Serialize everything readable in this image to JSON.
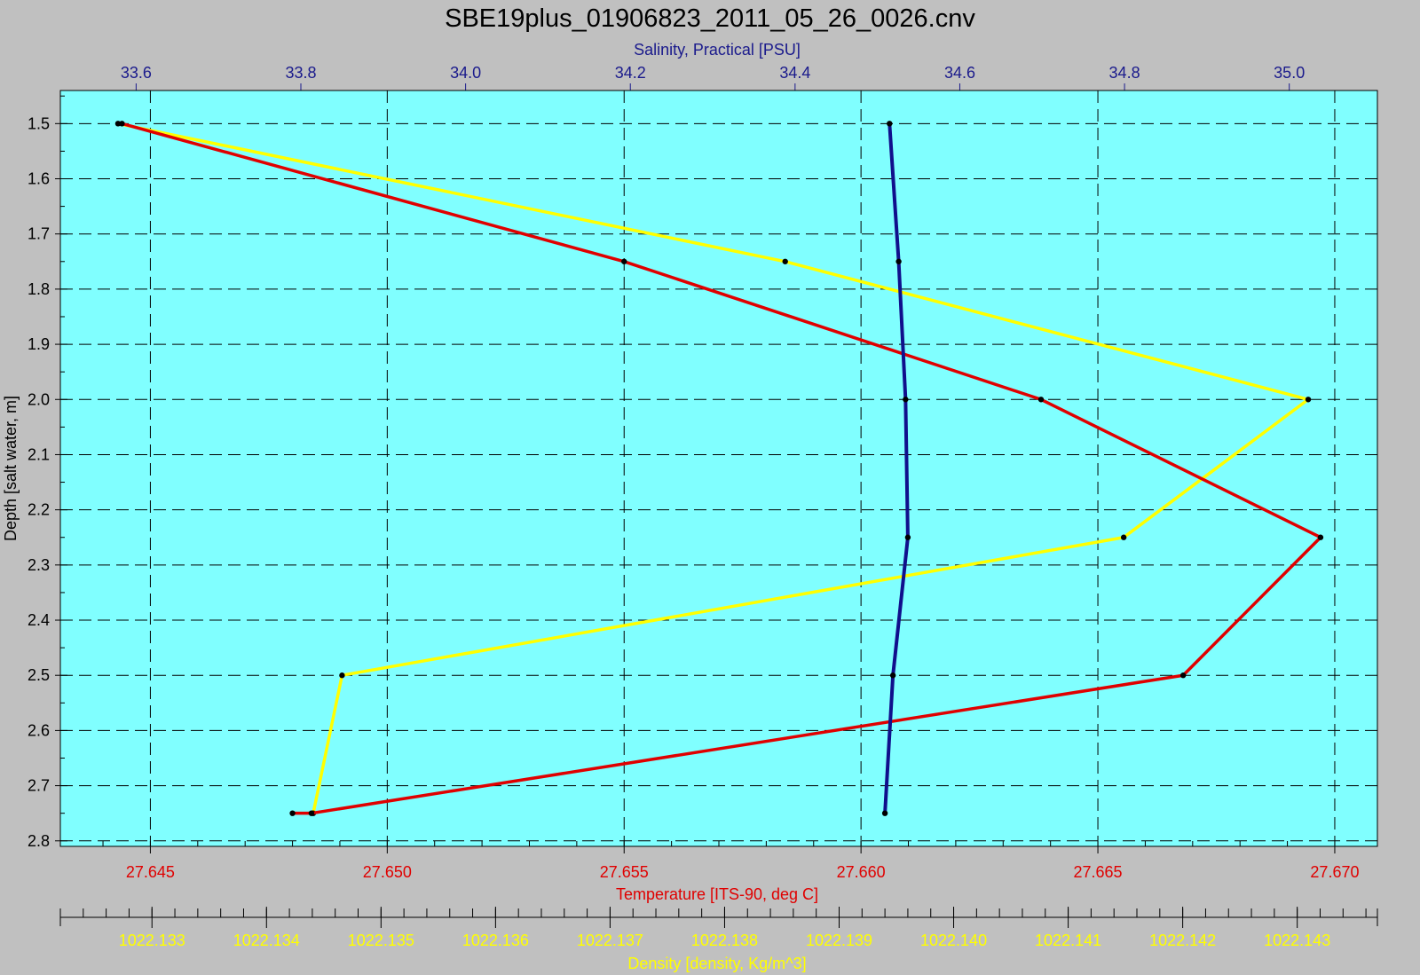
{
  "chart_data": {
    "type": "line",
    "title": "SBE19plus_01906823_2011_05_26_0026.cnv",
    "y_axis": {
      "label": "Depth [salt water, m]",
      "range": [
        1.44,
        2.81
      ],
      "ticks": [
        "1.5",
        "1.6",
        "1.7",
        "1.8",
        "1.9",
        "2.0",
        "2.1",
        "2.2",
        "2.3",
        "2.4",
        "2.5",
        "2.6",
        "2.7",
        "2.8"
      ],
      "reversed": true
    },
    "x_axes": {
      "salinity": {
        "label": "Salinity, Practical [PSU]",
        "position": "top",
        "range": [
          33.508,
          35.107
        ],
        "ticks": [
          "33.6",
          "33.8",
          "34.0",
          "34.2",
          "34.4",
          "34.6",
          "34.8",
          "35.0"
        ]
      },
      "temperature": {
        "label": "Temperature [ITS-90, deg C]",
        "position": "bottom",
        "range": [
          27.6431,
          27.6709
        ],
        "ticks": [
          "27.645",
          "27.650",
          "27.655",
          "27.660",
          "27.665",
          "27.670"
        ]
      },
      "density": {
        "label": "Density [density, Kg/m^3]",
        "position": "bottom-secondary",
        "range": [
          1022.1322,
          1022.1437
        ],
        "ticks": [
          "1022.133",
          "1022.134",
          "1022.135",
          "1022.136",
          "1022.137",
          "1022.138",
          "1022.139",
          "1022.140",
          "1022.141",
          "1022.142",
          "1022.143"
        ]
      }
    },
    "grid": true,
    "colors": {
      "background": "#c0c0c0",
      "plot_area": "#80ffff",
      "salinity": "#ffff00",
      "temperature": "#e00000",
      "density": "#10108c",
      "markers": "#000000"
    },
    "series": [
      {
        "key": "salinity",
        "axis": "salinity",
        "points": [
          {
            "depth": 1.5,
            "value": 33.578
          },
          {
            "depth": 1.75,
            "value": 34.388
          },
          {
            "depth": 2.0,
            "value": 35.023
          },
          {
            "depth": 2.25,
            "value": 34.799
          },
          {
            "depth": 2.5,
            "value": 33.85
          },
          {
            "depth": 2.75,
            "value": 33.815
          }
        ]
      },
      {
        "key": "temperature",
        "axis": "temperature",
        "points": [
          {
            "depth": 1.5,
            "value": 27.6444
          },
          {
            "depth": 1.75,
            "value": 27.655
          },
          {
            "depth": 2.0,
            "value": 27.6638
          },
          {
            "depth": 2.25,
            "value": 27.6697
          },
          {
            "depth": 2.5,
            "value": 27.6668
          },
          {
            "depth": 2.75,
            "value": 27.6484
          },
          {
            "depth": 2.75,
            "value": 27.648
          }
        ]
      },
      {
        "key": "density",
        "axis": "density",
        "points": [
          {
            "depth": 1.5,
            "value": 1022.13944
          },
          {
            "depth": 1.75,
            "value": 1022.13952
          },
          {
            "depth": 2.0,
            "value": 1022.13958
          },
          {
            "depth": 2.25,
            "value": 1022.1396
          },
          {
            "depth": 2.5,
            "value": 1022.13947
          },
          {
            "depth": 2.75,
            "value": 1022.1394
          }
        ]
      }
    ]
  }
}
